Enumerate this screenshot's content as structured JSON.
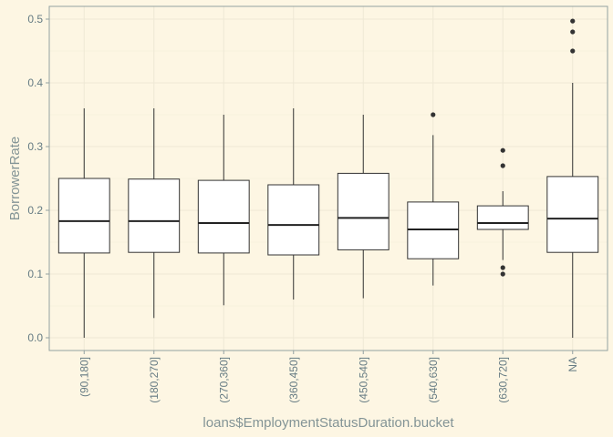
{
  "chart_data": {
    "type": "boxplot",
    "xlabel": "loans$EmploymentStatusDuration.bucket",
    "ylabel": "BorrowerRate",
    "ylim": [
      -0.02,
      0.52
    ],
    "y_ticks": [
      0.0,
      0.1,
      0.2,
      0.3,
      0.4,
      0.5
    ],
    "y_tick_labels": [
      "0.0",
      "0.1",
      "0.2",
      "0.3",
      "0.4",
      "0.5"
    ],
    "grid": true,
    "categories": [
      "(90,180]",
      "(180,270]",
      "(270,360]",
      "(360,450]",
      "(450,540]",
      "(540,630]",
      "(630,720]",
      "NA"
    ],
    "boxes": [
      {
        "category": "(90,180]",
        "min": 0.0,
        "q1": 0.133,
        "median": 0.183,
        "q3": 0.25,
        "max": 0.36,
        "outliers": []
      },
      {
        "category": "(180,270]",
        "min": 0.031,
        "q1": 0.134,
        "median": 0.183,
        "q3": 0.249,
        "max": 0.36,
        "outliers": []
      },
      {
        "category": "(270,360]",
        "min": 0.051,
        "q1": 0.133,
        "median": 0.18,
        "q3": 0.247,
        "max": 0.35,
        "outliers": []
      },
      {
        "category": "(360,450]",
        "min": 0.06,
        "q1": 0.13,
        "median": 0.177,
        "q3": 0.24,
        "max": 0.36,
        "outliers": []
      },
      {
        "category": "(450,540]",
        "min": 0.062,
        "q1": 0.138,
        "median": 0.188,
        "q3": 0.258,
        "max": 0.35,
        "outliers": []
      },
      {
        "category": "(540,630]",
        "min": 0.082,
        "q1": 0.124,
        "median": 0.17,
        "q3": 0.213,
        "max": 0.318,
        "outliers": [
          0.35
        ]
      },
      {
        "category": "(630,720]",
        "min": 0.122,
        "q1": 0.17,
        "median": 0.18,
        "q3": 0.207,
        "max": 0.23,
        "outliers": [
          0.1,
          0.11,
          0.27,
          0.294
        ]
      },
      {
        "category": "NA",
        "min": 0.0,
        "q1": 0.134,
        "median": 0.187,
        "q3": 0.253,
        "max": 0.4,
        "outliers": [
          0.45,
          0.48,
          0.497
        ]
      }
    ]
  }
}
